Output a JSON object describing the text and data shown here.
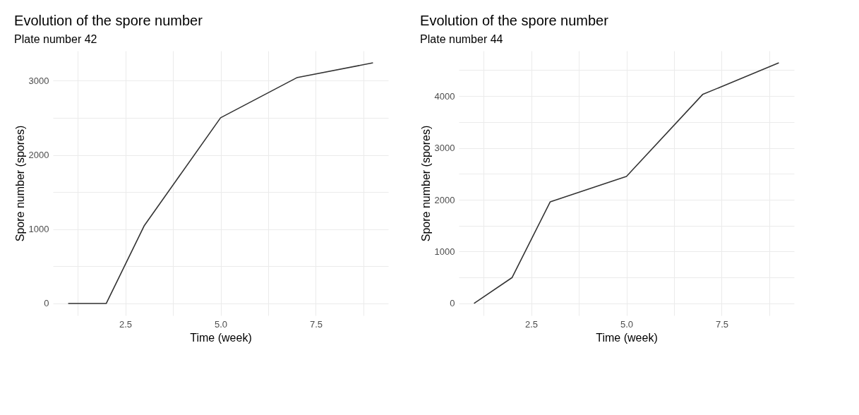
{
  "chart_data": [
    {
      "type": "line",
      "title": "Evolution of the spore number",
      "subtitle": "Plate number 42",
      "xlabel": "Time (week)",
      "ylabel": "Spore number (spores)",
      "x": [
        1,
        2,
        3,
        5,
        7,
        9
      ],
      "series": [
        {
          "color": "#333333",
          "values": [
            0,
            0,
            1050,
            2500,
            3040,
            3240
          ]
        }
      ],
      "xlim": [
        0.6,
        9.4
      ],
      "ylim": [
        -162,
        3402
      ],
      "xticks": [
        {
          "value": 1.25,
          "label": null
        },
        {
          "value": 2.5,
          "label": "2.5"
        },
        {
          "value": 3.75,
          "label": null
        },
        {
          "value": 5,
          "label": "5.0"
        },
        {
          "value": 6.25,
          "label": null
        },
        {
          "value": 7.5,
          "label": "7.5"
        },
        {
          "value": 8.75,
          "label": null
        }
      ],
      "yticks": [
        0,
        {
          "value": 500,
          "label": null
        },
        1000,
        {
          "value": 1500,
          "label": null
        },
        2000,
        {
          "value": 2500,
          "label": null
        },
        3000
      ],
      "grid": true
    },
    {
      "type": "line",
      "title": "Evolution of the spore number",
      "subtitle": "Plate number 44",
      "xlabel": "Time (week)",
      "ylabel": "Spore number (spores)",
      "x": [
        1,
        2,
        3,
        5,
        7,
        9
      ],
      "series": [
        {
          "color": "#333333",
          "values": [
            0,
            500,
            1960,
            2450,
            4030,
            4640
          ]
        }
      ],
      "xlim": [
        0.6,
        9.4
      ],
      "ylim": [
        -232,
        4872
      ],
      "xticks": [
        {
          "value": 1.25,
          "label": null
        },
        {
          "value": 2.5,
          "label": "2.5"
        },
        {
          "value": 3.75,
          "label": null
        },
        {
          "value": 5,
          "label": "5.0"
        },
        {
          "value": 6.25,
          "label": null
        },
        {
          "value": 7.5,
          "label": "7.5"
        },
        {
          "value": 8.75,
          "label": null
        }
      ],
      "yticks": [
        0,
        {
          "value": 500,
          "label": null
        },
        1000,
        {
          "value": 1500,
          "label": null
        },
        2000,
        {
          "value": 2500,
          "label": null
        },
        3000,
        {
          "value": 3500,
          "label": null
        },
        4000,
        {
          "value": 4500,
          "label": null
        }
      ],
      "grid": true
    }
  ]
}
